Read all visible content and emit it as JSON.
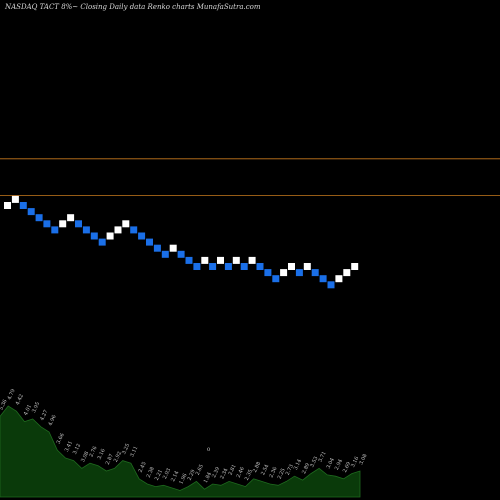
{
  "chart_data": {
    "type": "renko",
    "title": "NASDAQ TACT 8%~  Closing Daily data  Renko  charts MunafaSutra.com",
    "colors": {
      "background": "#000000",
      "up_brick": "#ffffff",
      "down_brick": "#1a6fe8",
      "level_line": "#c87a1e",
      "volume_fill": "#0a3a0a",
      "volume_line": "#1e6a1e"
    },
    "levels": [
      1,
      7
    ],
    "bricks": [
      {
        "dir": "up",
        "level": 0
      },
      {
        "dir": "up",
        "level": 1
      },
      {
        "dir": "down",
        "level": 0
      },
      {
        "dir": "down",
        "level": -1
      },
      {
        "dir": "down",
        "level": -2
      },
      {
        "dir": "down",
        "level": -3
      },
      {
        "dir": "down",
        "level": -4
      },
      {
        "dir": "up",
        "level": -3
      },
      {
        "dir": "up",
        "level": -2
      },
      {
        "dir": "down",
        "level": -3
      },
      {
        "dir": "down",
        "level": -4
      },
      {
        "dir": "down",
        "level": -5
      },
      {
        "dir": "down",
        "level": -6
      },
      {
        "dir": "up",
        "level": -5
      },
      {
        "dir": "up",
        "level": -4
      },
      {
        "dir": "up",
        "level": -3
      },
      {
        "dir": "down",
        "level": -4
      },
      {
        "dir": "down",
        "level": -5
      },
      {
        "dir": "down",
        "level": -6
      },
      {
        "dir": "down",
        "level": -7
      },
      {
        "dir": "down",
        "level": -8
      },
      {
        "dir": "up",
        "level": -7
      },
      {
        "dir": "down",
        "level": -8
      },
      {
        "dir": "down",
        "level": -9
      },
      {
        "dir": "down",
        "level": -10
      },
      {
        "dir": "up",
        "level": -9
      },
      {
        "dir": "down",
        "level": -10
      },
      {
        "dir": "up",
        "level": -9
      },
      {
        "dir": "down",
        "level": -10
      },
      {
        "dir": "up",
        "level": -9
      },
      {
        "dir": "down",
        "level": -10
      },
      {
        "dir": "up",
        "level": -9
      },
      {
        "dir": "down",
        "level": -10
      },
      {
        "dir": "down",
        "level": -11
      },
      {
        "dir": "down",
        "level": -12
      },
      {
        "dir": "up",
        "level": -11
      },
      {
        "dir": "up",
        "level": -10
      },
      {
        "dir": "down",
        "level": -11
      },
      {
        "dir": "up",
        "level": -10
      },
      {
        "dir": "down",
        "level": -11
      },
      {
        "dir": "down",
        "level": -12
      },
      {
        "dir": "down",
        "level": -13
      },
      {
        "dir": "up",
        "level": -12
      },
      {
        "dir": "up",
        "level": -11
      },
      {
        "dir": "up",
        "level": -10
      }
    ],
    "volume_values": [
      0.62,
      0.7,
      0.66,
      0.58,
      0.6,
      0.54,
      0.5,
      0.36,
      0.3,
      0.28,
      0.22,
      0.26,
      0.24,
      0.2,
      0.22,
      0.28,
      0.26,
      0.14,
      0.1,
      0.08,
      0.09,
      0.07,
      0.05,
      0.08,
      0.12,
      0.06,
      0.1,
      0.09,
      0.12,
      0.1,
      0.08,
      0.14,
      0.12,
      0.1,
      0.09,
      0.12,
      0.16,
      0.13,
      0.18,
      0.22,
      0.17,
      0.16,
      0.14,
      0.18,
      0.2
    ],
    "volume_labels": [
      "5.36",
      "4.79",
      "4.42",
      "4.01",
      "3.95",
      "4.27",
      "4.96",
      "3.66",
      "3.41",
      "3.12",
      "3.08",
      "2.76",
      "3.16",
      "2.87",
      "2.92",
      "3.25",
      "3.11",
      "2.45",
      "2.38",
      "2.21",
      "2.03",
      "2.14",
      "1.96",
      "2.29",
      "2.65",
      "1.84",
      "2.39",
      "2.34",
      "2.81",
      "2.46",
      "2.35",
      "2.88",
      "2.54",
      "2.36",
      "2.25",
      "2.73",
      "3.14",
      "2.89",
      "3.53",
      "3.71",
      "3.04",
      "2.94",
      "2.69",
      "3.16",
      "3.08"
    ],
    "volume_marker": "0"
  }
}
